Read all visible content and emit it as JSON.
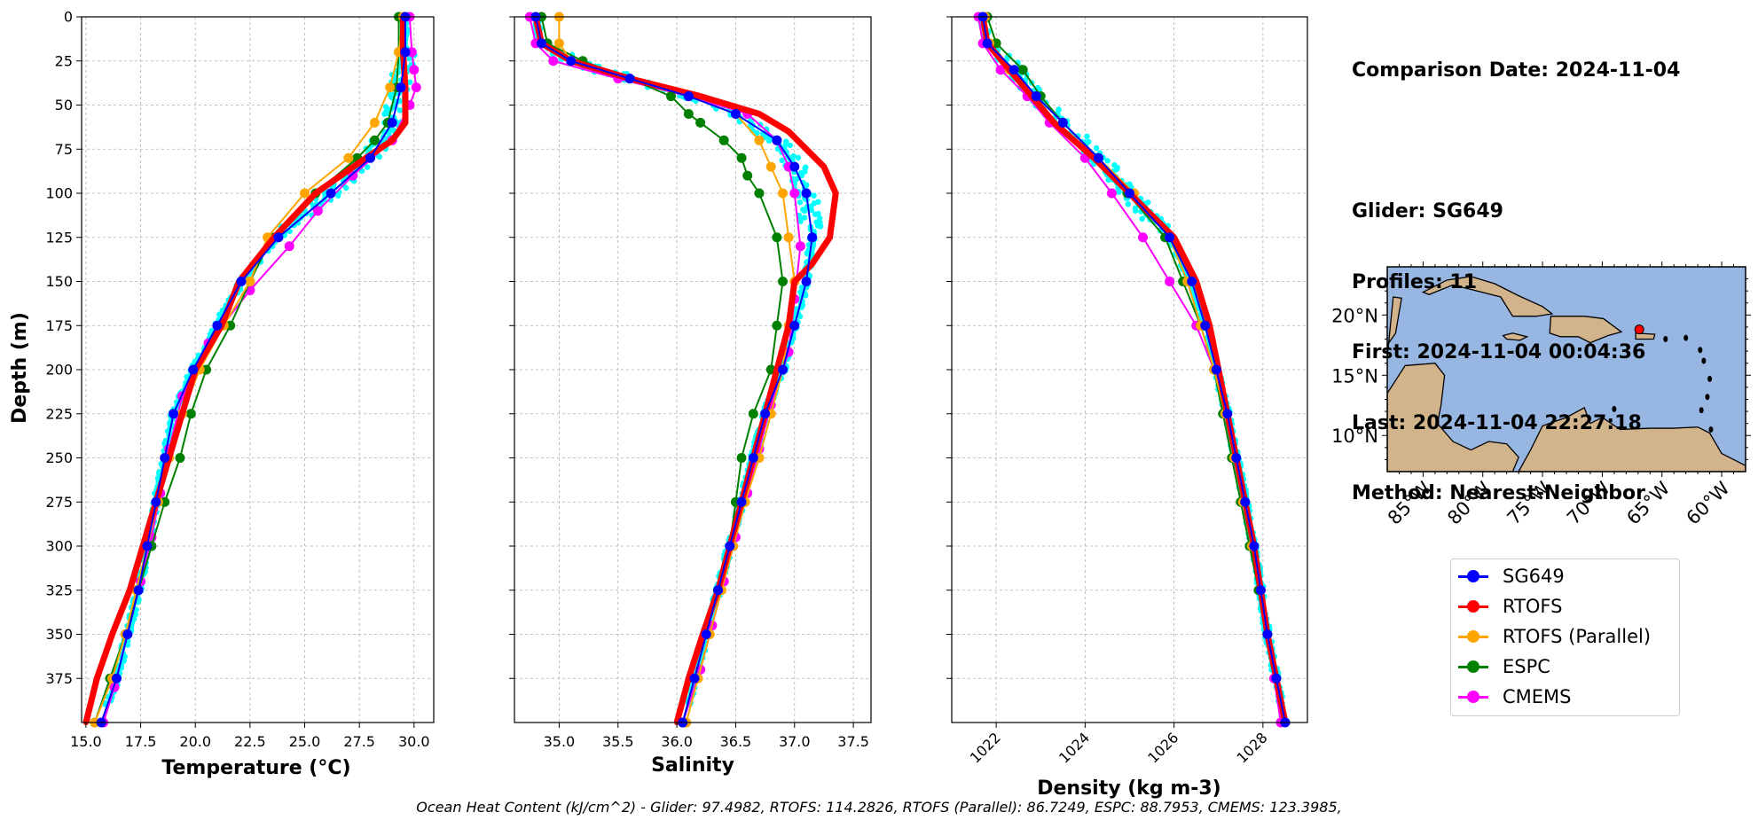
{
  "info": {
    "comparison_date": "Comparison Date: 2024-11-04",
    "glider": "Glider: SG649",
    "profiles": "Profiles: 11",
    "first": "First: 2024-11-04 00:04:36",
    "last": "Last: 2024-11-04 22:27:18",
    "method": "Method: Nearest-Neighbor"
  },
  "footer_text": "Ocean Heat Content (kJ/cm^2) - Glider: 97.4982,  RTOFS: 114.2826,  RTOFS (Parallel): 86.7249,  ESPC: 88.7953,  CMEMS: 123.3985,",
  "legend": [
    {
      "name": "SG649",
      "color": "#0000ff"
    },
    {
      "name": "RTOFS",
      "color": "#ff0000"
    },
    {
      "name": "RTOFS (Parallel)",
      "color": "#ffa500"
    },
    {
      "name": "ESPC",
      "color": "#008000"
    },
    {
      "name": "CMEMS",
      "color": "#ff00ff"
    }
  ],
  "chart_data": [
    {
      "type": "line",
      "xlabel": "Temperature (°C)",
      "ylabel": "Depth (m)",
      "xlim": [
        14.8,
        30.9
      ],
      "ylim": [
        400,
        0
      ],
      "x_ticks": [
        "15.0",
        "17.5",
        "20.0",
        "22.5",
        "25.0",
        "27.5",
        "30.0"
      ],
      "y_ticks": [
        "0",
        "25",
        "50",
        "75",
        "100",
        "125",
        "150",
        "175",
        "200",
        "225",
        "250",
        "275",
        "300",
        "325",
        "350",
        "375"
      ],
      "grid": true,
      "glider_scatter_color": "#00ffff",
      "series": [
        {
          "name": "SG649",
          "color": "#0000ff",
          "depth": [
            0,
            20,
            40,
            60,
            80,
            100,
            125,
            150,
            175,
            200,
            225,
            250,
            275,
            300,
            325,
            350,
            375,
            400
          ],
          "values": [
            29.6,
            29.6,
            29.4,
            29.0,
            28.0,
            26.2,
            23.8,
            22.1,
            21.0,
            19.9,
            19.0,
            18.6,
            18.2,
            17.8,
            17.4,
            16.9,
            16.4,
            15.7
          ]
        },
        {
          "name": "RTOFS",
          "color": "#ff0000",
          "depth": [
            0,
            20,
            40,
            60,
            70,
            80,
            100,
            125,
            150,
            175,
            200,
            225,
            250,
            275,
            300,
            325,
            350,
            375,
            400
          ],
          "values": [
            29.5,
            29.5,
            29.6,
            29.6,
            29.0,
            27.8,
            25.5,
            23.6,
            22.0,
            21.2,
            20.0,
            19.4,
            18.8,
            18.2,
            17.6,
            17.0,
            16.2,
            15.5,
            15.0
          ]
        },
        {
          "name": "RTOFS (Parallel)",
          "color": "#ffa500",
          "depth": [
            0,
            20,
            40,
            60,
            80,
            100,
            125,
            150,
            175,
            200,
            225,
            250,
            275,
            300,
            325,
            350,
            375,
            400
          ],
          "values": [
            29.5,
            29.3,
            28.9,
            28.2,
            27.0,
            25.0,
            23.3,
            22.5,
            21.3,
            20.2,
            19.4,
            18.8,
            18.3,
            17.8,
            17.3,
            16.8,
            16.2,
            15.4
          ]
        },
        {
          "name": "ESPC",
          "color": "#008000",
          "depth": [
            0,
            20,
            40,
            60,
            70,
            80,
            100,
            125,
            150,
            175,
            200,
            225,
            250,
            275,
            300,
            325,
            350,
            375,
            400
          ],
          "values": [
            29.3,
            29.3,
            29.2,
            28.8,
            28.2,
            27.4,
            25.5,
            23.5,
            22.5,
            21.6,
            20.5,
            19.8,
            19.3,
            18.6,
            18.0,
            17.4,
            16.8,
            16.1,
            15.4
          ]
        },
        {
          "name": "CMEMS",
          "color": "#ff00ff",
          "depth": [
            0,
            20,
            30,
            40,
            50,
            70,
            90,
            110,
            130,
            155,
            185,
            215,
            245,
            270,
            295,
            320,
            350,
            380,
            400
          ],
          "values": [
            29.8,
            29.9,
            30.0,
            30.1,
            29.8,
            29.0,
            27.2,
            25.6,
            24.3,
            22.5,
            20.6,
            19.4,
            18.8,
            18.4,
            18.0,
            17.5,
            16.9,
            16.3,
            15.8
          ]
        }
      ]
    },
    {
      "type": "line",
      "xlabel": "Salinity",
      "ylabel": "",
      "xlim": [
        34.62,
        37.65
      ],
      "ylim": [
        400,
        0
      ],
      "x_ticks": [
        "35.0",
        "35.5",
        "36.0",
        "36.5",
        "37.0",
        "37.5"
      ],
      "grid": true,
      "glider_scatter_color": "#00ffff",
      "series": [
        {
          "name": "SG649",
          "color": "#0000ff",
          "depth": [
            0,
            15,
            25,
            35,
            45,
            55,
            70,
            85,
            100,
            125,
            150,
            175,
            200,
            225,
            250,
            275,
            300,
            325,
            350,
            375,
            400
          ],
          "values": [
            34.8,
            34.85,
            35.1,
            35.6,
            36.1,
            36.5,
            36.85,
            37.0,
            37.1,
            37.15,
            37.1,
            37.0,
            36.9,
            36.75,
            36.65,
            36.55,
            36.45,
            36.35,
            36.25,
            36.15,
            36.05
          ]
        },
        {
          "name": "RTOFS",
          "color": "#ff0000",
          "depth": [
            0,
            15,
            25,
            35,
            45,
            55,
            65,
            75,
            85,
            100,
            125,
            140,
            150,
            175,
            200,
            225,
            250,
            275,
            300,
            325,
            350,
            375,
            400
          ],
          "values": [
            34.8,
            34.85,
            35.1,
            35.6,
            36.2,
            36.7,
            36.95,
            37.1,
            37.25,
            37.35,
            37.3,
            37.15,
            37.0,
            36.95,
            36.85,
            36.75,
            36.65,
            36.55,
            36.45,
            36.35,
            36.22,
            36.1,
            36.0
          ]
        },
        {
          "name": "RTOFS (Parallel)",
          "color": "#ffa500",
          "depth": [
            0,
            15,
            25,
            35,
            45,
            55,
            70,
            85,
            100,
            125,
            150,
            175,
            200,
            225,
            250,
            275,
            300,
            325,
            350,
            375,
            400
          ],
          "values": [
            35.0,
            35.0,
            35.1,
            35.6,
            36.1,
            36.5,
            36.7,
            36.8,
            36.9,
            36.95,
            37.0,
            36.95,
            36.9,
            36.8,
            36.7,
            36.58,
            36.48,
            36.38,
            36.28,
            36.18,
            36.08
          ]
        },
        {
          "name": "ESPC",
          "color": "#008000",
          "depth": [
            0,
            15,
            25,
            35,
            45,
            55,
            60,
            70,
            80,
            90,
            100,
            125,
            150,
            175,
            200,
            225,
            250,
            275,
            300,
            325,
            350,
            375,
            400
          ],
          "values": [
            34.85,
            34.9,
            35.2,
            35.6,
            35.95,
            36.1,
            36.2,
            36.4,
            36.55,
            36.6,
            36.7,
            36.85,
            36.9,
            36.85,
            36.8,
            36.65,
            36.55,
            36.5,
            36.45,
            36.35,
            36.25,
            36.15,
            36.05
          ]
        },
        {
          "name": "CMEMS",
          "color": "#ff00ff",
          "depth": [
            0,
            15,
            25,
            35,
            45,
            55,
            70,
            85,
            100,
            130,
            160,
            190,
            220,
            245,
            270,
            295,
            320,
            345,
            370,
            400
          ],
          "values": [
            34.75,
            34.8,
            34.95,
            35.5,
            36.1,
            36.6,
            36.85,
            36.95,
            37.0,
            37.05,
            37.0,
            36.95,
            36.8,
            36.7,
            36.6,
            36.5,
            36.4,
            36.3,
            36.2,
            36.05
          ]
        }
      ]
    },
    {
      "type": "line",
      "xlabel": "Density (kg m-3)",
      "ylabel": "",
      "xlim": [
        1021.0,
        1029.0
      ],
      "ylim": [
        400,
        0
      ],
      "x_ticks": [
        "1022",
        "1024",
        "1026",
        "1028"
      ],
      "grid": true,
      "glider_scatter_color": "#00ffff",
      "series": [
        {
          "name": "SG649",
          "color": "#0000ff",
          "depth": [
            0,
            15,
            30,
            45,
            60,
            80,
            100,
            125,
            150,
            175,
            200,
            225,
            250,
            275,
            300,
            325,
            350,
            375,
            400
          ],
          "values": [
            1021.7,
            1021.8,
            1022.4,
            1022.9,
            1023.5,
            1024.3,
            1025.0,
            1025.9,
            1026.4,
            1026.7,
            1026.95,
            1027.2,
            1027.4,
            1027.6,
            1027.8,
            1027.95,
            1028.1,
            1028.3,
            1028.5
          ]
        },
        {
          "name": "RTOFS",
          "color": "#ff0000",
          "depth": [
            0,
            15,
            30,
            45,
            60,
            80,
            100,
            125,
            150,
            175,
            200,
            225,
            250,
            275,
            300,
            325,
            350,
            375,
            400
          ],
          "values": [
            1021.7,
            1021.8,
            1022.3,
            1022.8,
            1023.3,
            1024.2,
            1025.0,
            1026.0,
            1026.5,
            1026.8,
            1027.0,
            1027.2,
            1027.4,
            1027.6,
            1027.8,
            1027.95,
            1028.1,
            1028.3,
            1028.5
          ]
        },
        {
          "name": "RTOFS (Parallel)",
          "color": "#ffa500",
          "depth": [
            0,
            15,
            30,
            45,
            60,
            80,
            100,
            125,
            150,
            175,
            200,
            225,
            250,
            275,
            300,
            325,
            350,
            375,
            400
          ],
          "values": [
            1021.75,
            1021.85,
            1022.3,
            1022.9,
            1023.5,
            1024.3,
            1025.1,
            1025.9,
            1026.3,
            1026.6,
            1026.9,
            1027.15,
            1027.35,
            1027.55,
            1027.75,
            1027.95,
            1028.1,
            1028.3,
            1028.5
          ]
        },
        {
          "name": "ESPC",
          "color": "#008000",
          "depth": [
            0,
            15,
            30,
            45,
            60,
            80,
            100,
            125,
            150,
            175,
            200,
            225,
            250,
            275,
            300,
            325,
            350,
            375,
            400
          ],
          "values": [
            1021.8,
            1022.0,
            1022.6,
            1023.0,
            1023.5,
            1024.3,
            1024.95,
            1025.8,
            1026.2,
            1026.6,
            1026.9,
            1027.1,
            1027.3,
            1027.5,
            1027.7,
            1027.9,
            1028.1,
            1028.3,
            1028.5
          ]
        },
        {
          "name": "CMEMS",
          "color": "#ff00ff",
          "depth": [
            0,
            15,
            30,
            45,
            60,
            80,
            100,
            125,
            150,
            175,
            200,
            225,
            250,
            275,
            300,
            325,
            350,
            375,
            400
          ],
          "values": [
            1021.6,
            1021.7,
            1022.1,
            1022.7,
            1023.2,
            1024.0,
            1024.6,
            1025.3,
            1025.9,
            1026.5,
            1026.9,
            1027.15,
            1027.35,
            1027.55,
            1027.75,
            1027.95,
            1028.1,
            1028.25,
            1028.4
          ]
        }
      ]
    },
    {
      "type": "map",
      "x_ticks": [
        "85°W",
        "80°W",
        "75°W",
        "70°W",
        "65°W",
        "60°W"
      ],
      "y_ticks": [
        "20°N",
        "15°N",
        "10°N"
      ],
      "lon_range": [
        -88,
        -58
      ],
      "lat_range": [
        7,
        24
      ],
      "ocean_color": "#97b6e1",
      "land_color": "#d2b48c",
      "marker": {
        "lon": -66.9,
        "lat": 18.8,
        "color": "#ff0000"
      }
    }
  ]
}
